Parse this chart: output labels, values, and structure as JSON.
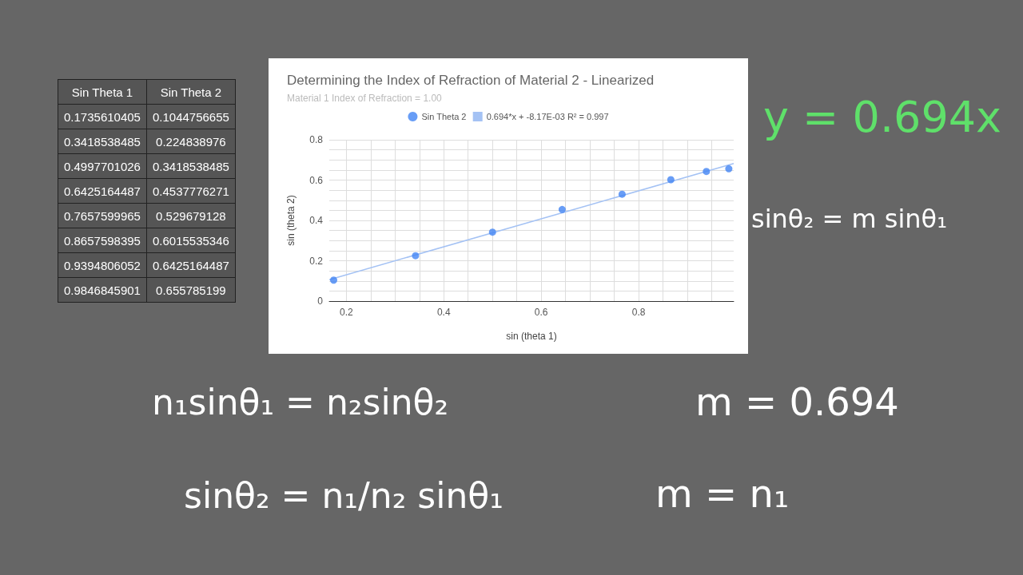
{
  "chart_data": [
    {
      "type": "scatter",
      "title": "Determining the Index of Refraction of Material 2 - Linearized",
      "subtitle": "Material 1 Index of Refraction = 1.00",
      "xlabel": "sin (theta 1)",
      "ylabel": "sin (theta 2)",
      "series": [
        {
          "name": "Sin Theta 2",
          "color": "#4285f4",
          "x": [
            0.174,
            0.342,
            0.5,
            0.643,
            0.766,
            0.866,
            0.939,
            0.985
          ],
          "values": [
            0.104,
            0.225,
            0.342,
            0.454,
            0.53,
            0.602,
            0.643,
            0.656
          ]
        },
        {
          "name": "0.694*x + -8.17E-03 R² = 0.997",
          "type": "line",
          "marker": "none",
          "color": "#a4c2f4",
          "x": [
            0.165,
            0.995
          ],
          "values": [
            0.106,
            0.682
          ]
        }
      ],
      "xlim": [
        0.165,
        0.995
      ],
      "xticks": [
        {
          "value": 0.2,
          "label": "0.2"
        },
        {
          "value": 0.25,
          "label": null
        },
        {
          "value": 0.3,
          "label": null
        },
        {
          "value": 0.35,
          "label": null
        },
        {
          "value": 0.4,
          "label": "0.4"
        },
        {
          "value": 0.45,
          "label": null
        },
        {
          "value": 0.5,
          "label": null
        },
        {
          "value": 0.55,
          "label": null
        },
        {
          "value": 0.6,
          "label": "0.6"
        },
        {
          "value": 0.65,
          "label": null
        },
        {
          "value": 0.7,
          "label": null
        },
        {
          "value": 0.75,
          "label": null
        },
        {
          "value": 0.8,
          "label": "0.8"
        },
        {
          "value": 0.85,
          "label": null
        },
        {
          "value": 0.9,
          "label": null
        },
        {
          "value": 0.95,
          "label": null
        }
      ],
      "ylim": [
        0,
        0.8
      ],
      "yticks": [
        0,
        {
          "value": 0.05,
          "label": null
        },
        {
          "value": 0.1,
          "label": null
        },
        {
          "value": 0.15,
          "label": null
        },
        0.2,
        {
          "value": 0.25,
          "label": null
        },
        {
          "value": 0.3,
          "label": null
        },
        {
          "value": 0.35,
          "label": null
        },
        0.4,
        {
          "value": 0.45,
          "label": null
        },
        {
          "value": 0.5,
          "label": null
        },
        {
          "value": 0.55,
          "label": null
        },
        0.6,
        {
          "value": 0.65,
          "label": null
        },
        {
          "value": 0.7,
          "label": null
        },
        {
          "value": 0.75,
          "label": null
        },
        0.8
      ],
      "grid": true,
      "legend": "top",
      "marker": "circle",
      "annotations": [
        "y = 0.694x",
        "sinθ₂ = m sinθ₁",
        "n₁sinθ₁ = n₂sinθ₂",
        "m = 0.694",
        "sinθ₂ = n₁/n₂ sinθ₁",
        "m = n₁"
      ]
    },
    {
      "type": "other",
      "annotations": [
        "Sin Theta 1",
        "Sin Theta 2",
        "0.1735610405",
        "0.1044756655",
        "0.3418538485",
        "0.224838976",
        "0.4997701026",
        "0.3418538485",
        "0.6425164487",
        "0.4537776271",
        "0.7657599965",
        "0.529679128",
        "0.8657598395",
        "0.6015535346",
        "0.9394806052",
        "0.6425164487",
        "0.9846845901",
        "0.655785199"
      ]
    }
  ]
}
